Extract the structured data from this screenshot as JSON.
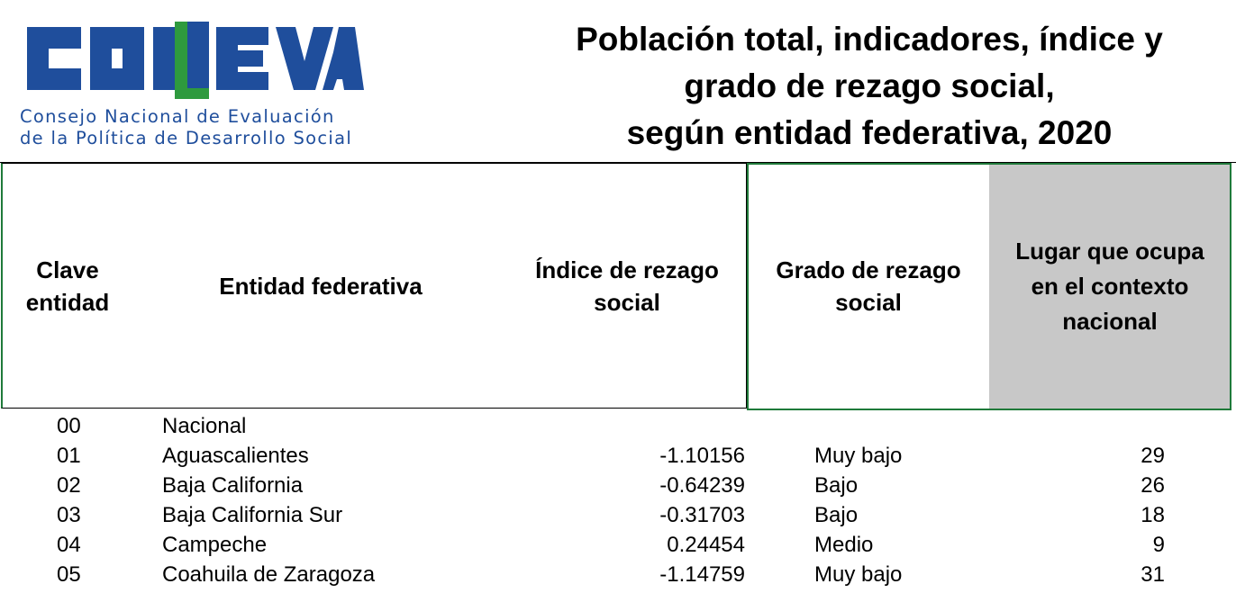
{
  "logo": {
    "wordmark": "CONEVAL",
    "subtitle_line1": "Consejo Nacional de Evaluación",
    "subtitle_line2": "de la Política de Desarrollo Social",
    "brand_blue": "#1f4e9c",
    "brand_green": "#2e9a3e"
  },
  "title": {
    "line1": "Población total, indicadores, índice y",
    "line2": "grado de rezago social,",
    "line3": "según entidad federativa, 2020"
  },
  "table": {
    "headers": {
      "clave": [
        "Clave",
        "entidad"
      ],
      "entidad": "Entidad federativa",
      "indice": [
        "Índice de rezago",
        "social"
      ],
      "grado": [
        "Grado de rezago",
        "social"
      ],
      "lugar": [
        "Lugar que ocupa",
        "en el contexto",
        "nacional"
      ]
    },
    "header_border_color": "#1f7a3a",
    "header_highlight_color": "#c8c8c8",
    "rows": [
      {
        "clave": "00",
        "entidad": "Nacional",
        "indice": "",
        "grado": "",
        "lugar": ""
      },
      {
        "clave": "01",
        "entidad": "Aguascalientes",
        "indice": "-1.10156",
        "grado": "Muy bajo",
        "lugar": "29"
      },
      {
        "clave": "02",
        "entidad": "Baja California",
        "indice": "-0.64239",
        "grado": "Bajo",
        "lugar": "26"
      },
      {
        "clave": "03",
        "entidad": "Baja California Sur",
        "indice": "-0.31703",
        "grado": "Bajo",
        "lugar": "18"
      },
      {
        "clave": "04",
        "entidad": "Campeche",
        "indice": "0.24454",
        "grado": "Medio",
        "lugar": "9"
      },
      {
        "clave": "05",
        "entidad": "Coahuila de Zaragoza",
        "indice": "-1.14759",
        "grado": "Muy bajo",
        "lugar": "31"
      }
    ]
  }
}
